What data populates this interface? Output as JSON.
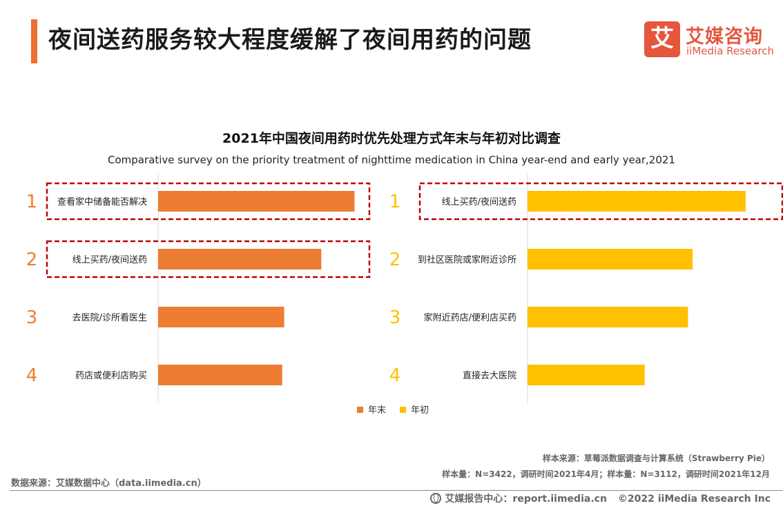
{
  "header": {
    "title": "夜间送药服务较大程度缓解了夜间用药的问题"
  },
  "logo": {
    "mark": "艾",
    "cn": "艾媒咨询",
    "en": "iiMedia Research"
  },
  "chart_data": [
    {
      "type": "bar",
      "orientation": "horizontal",
      "title": "2021年中国夜间用药时优先处理方式年末与年初对比调查",
      "subtitle": "Comparative survey on the priority treatment of nighttime medication in China year-end and early year,2021",
      "series_name": "年末",
      "color": "#ed7d31",
      "ranks": [
        "1",
        "2",
        "3",
        "4"
      ],
      "categories": [
        "查看家中储备能否解决",
        "线上买药/夜间送药",
        "去医院/诊所看医生",
        "药店或便利店购买"
      ],
      "values": [
        50.8,
        42.2,
        32.6,
        32.1
      ],
      "highlighted": [
        true,
        true,
        false,
        false
      ],
      "grid": false
    },
    {
      "type": "bar",
      "orientation": "horizontal",
      "series_name": "年初",
      "color": "#ffc000",
      "ranks": [
        "1",
        "2",
        "3",
        "4"
      ],
      "categories": [
        "线上买药/夜间送药",
        "到社区医院或家附近诊所",
        "家附近药店/便利店买药",
        "直接去大医院"
      ],
      "values": [
        56.4,
        42.7,
        41.5,
        30.3
      ],
      "highlighted": [
        true,
        false,
        false,
        false
      ],
      "grid": false
    }
  ],
  "legend": [
    {
      "label": "年末",
      "color": "#ed7d31"
    },
    {
      "label": "年初",
      "color": "#ffc000"
    }
  ],
  "colors": {
    "rank": "#ed7d31",
    "rank_alt": "#ffc000",
    "highlight": "#c00000"
  },
  "footer": {
    "source_right": "样本来源：草莓派数据调查与计算系统（Strawberry Pie）",
    "sample_info": "样本量：N=3422，调研时间2021年4月；样本量：N=3112，调研时间2021年12月",
    "data_source": "数据来源：艾媒数据中心（data.iimedia.cn）",
    "report_center": "艾媒报告中心：report.iimedia.cn",
    "copyright": "©2022  iiMedia Research Inc"
  }
}
